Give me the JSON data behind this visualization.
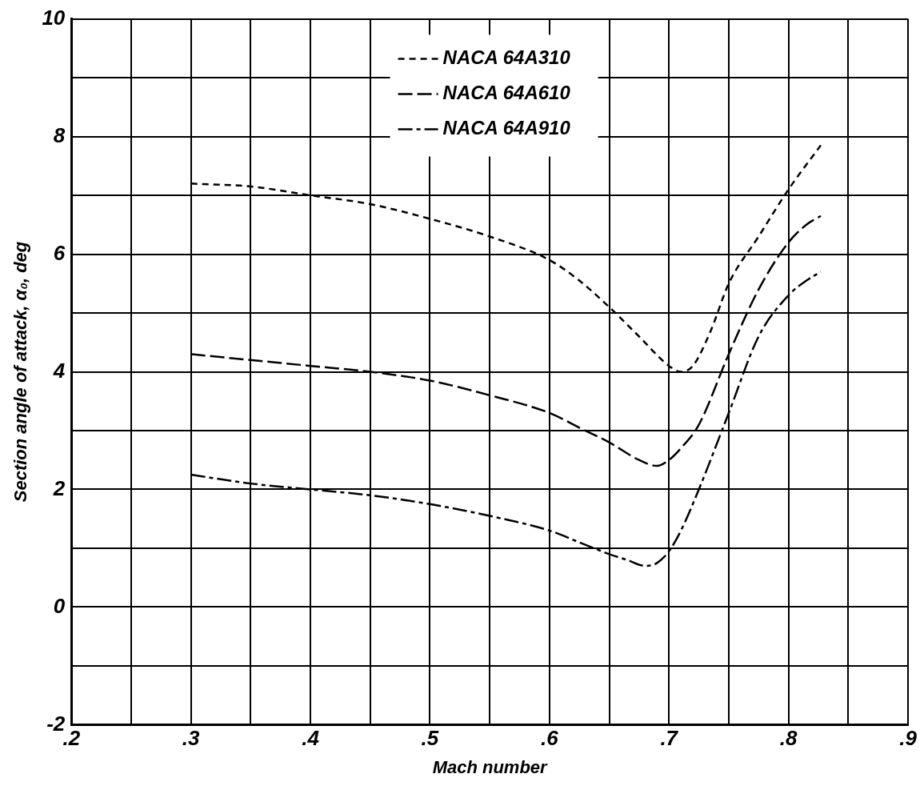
{
  "chart_data": {
    "type": "line",
    "xlabel": "Mach number",
    "ylabel": "Section angle of attack, α₀, deg",
    "xlim": [
      0.2,
      0.9
    ],
    "ylim": [
      -2,
      10
    ],
    "xticks": [
      {
        "value": 0.2,
        "label": ".2"
      },
      {
        "value": 0.25,
        "label": null
      },
      {
        "value": 0.3,
        "label": ".3"
      },
      {
        "value": 0.35,
        "label": null
      },
      {
        "value": 0.4,
        "label": ".4"
      },
      {
        "value": 0.45,
        "label": null
      },
      {
        "value": 0.5,
        "label": ".5"
      },
      {
        "value": 0.55,
        "label": null
      },
      {
        "value": 0.6,
        "label": ".6"
      },
      {
        "value": 0.65,
        "label": null
      },
      {
        "value": 0.7,
        "label": ".7"
      },
      {
        "value": 0.75,
        "label": null
      },
      {
        "value": 0.8,
        "label": ".8"
      },
      {
        "value": 0.85,
        "label": null
      },
      {
        "value": 0.9,
        "label": ".9"
      }
    ],
    "yticks": [
      -2,
      {
        "value": -1,
        "label": null
      },
      0,
      {
        "value": 1,
        "label": null
      },
      2,
      {
        "value": 3,
        "label": null
      },
      4,
      {
        "value": 5,
        "label": null
      },
      6,
      {
        "value": 7,
        "label": null
      },
      8,
      {
        "value": 9,
        "label": null
      },
      10
    ],
    "grid": true,
    "legend": "top",
    "marker": "none",
    "line_style": "dashed",
    "series": [
      {
        "name": "NACA 64A310",
        "color": "#000000",
        "x": [
          0.3,
          0.35,
          0.4,
          0.45,
          0.5,
          0.55,
          0.6,
          0.625,
          0.65,
          0.675,
          0.7,
          0.71,
          0.72,
          0.735,
          0.75,
          0.775,
          0.8,
          0.827
        ],
        "values": [
          7.2,
          7.15,
          7.0,
          6.85,
          6.6,
          6.3,
          5.9,
          5.55,
          5.1,
          4.6,
          4.1,
          4.0,
          4.1,
          4.7,
          5.5,
          6.3,
          7.1,
          7.85
        ]
      },
      {
        "name": "NACA 64A610",
        "color": "#000000",
        "x": [
          0.3,
          0.35,
          0.4,
          0.45,
          0.5,
          0.55,
          0.6,
          0.625,
          0.65,
          0.675,
          0.69,
          0.7,
          0.71,
          0.725,
          0.75,
          0.775,
          0.8,
          0.815,
          0.827
        ],
        "values": [
          4.3,
          4.2,
          4.1,
          4.0,
          3.85,
          3.6,
          3.3,
          3.05,
          2.8,
          2.5,
          2.4,
          2.5,
          2.7,
          3.1,
          4.3,
          5.4,
          6.2,
          6.5,
          6.65
        ]
      },
      {
        "name": "NACA 64A910",
        "color": "#000000",
        "x": [
          0.3,
          0.35,
          0.4,
          0.45,
          0.5,
          0.55,
          0.6,
          0.625,
          0.65,
          0.665,
          0.68,
          0.69,
          0.7,
          0.71,
          0.725,
          0.75,
          0.775,
          0.8,
          0.815,
          0.827
        ],
        "values": [
          2.25,
          2.1,
          2.0,
          1.9,
          1.75,
          1.55,
          1.3,
          1.1,
          0.9,
          0.8,
          0.7,
          0.75,
          0.95,
          1.3,
          2.0,
          3.3,
          4.6,
          5.3,
          5.55,
          5.7
        ]
      }
    ]
  }
}
